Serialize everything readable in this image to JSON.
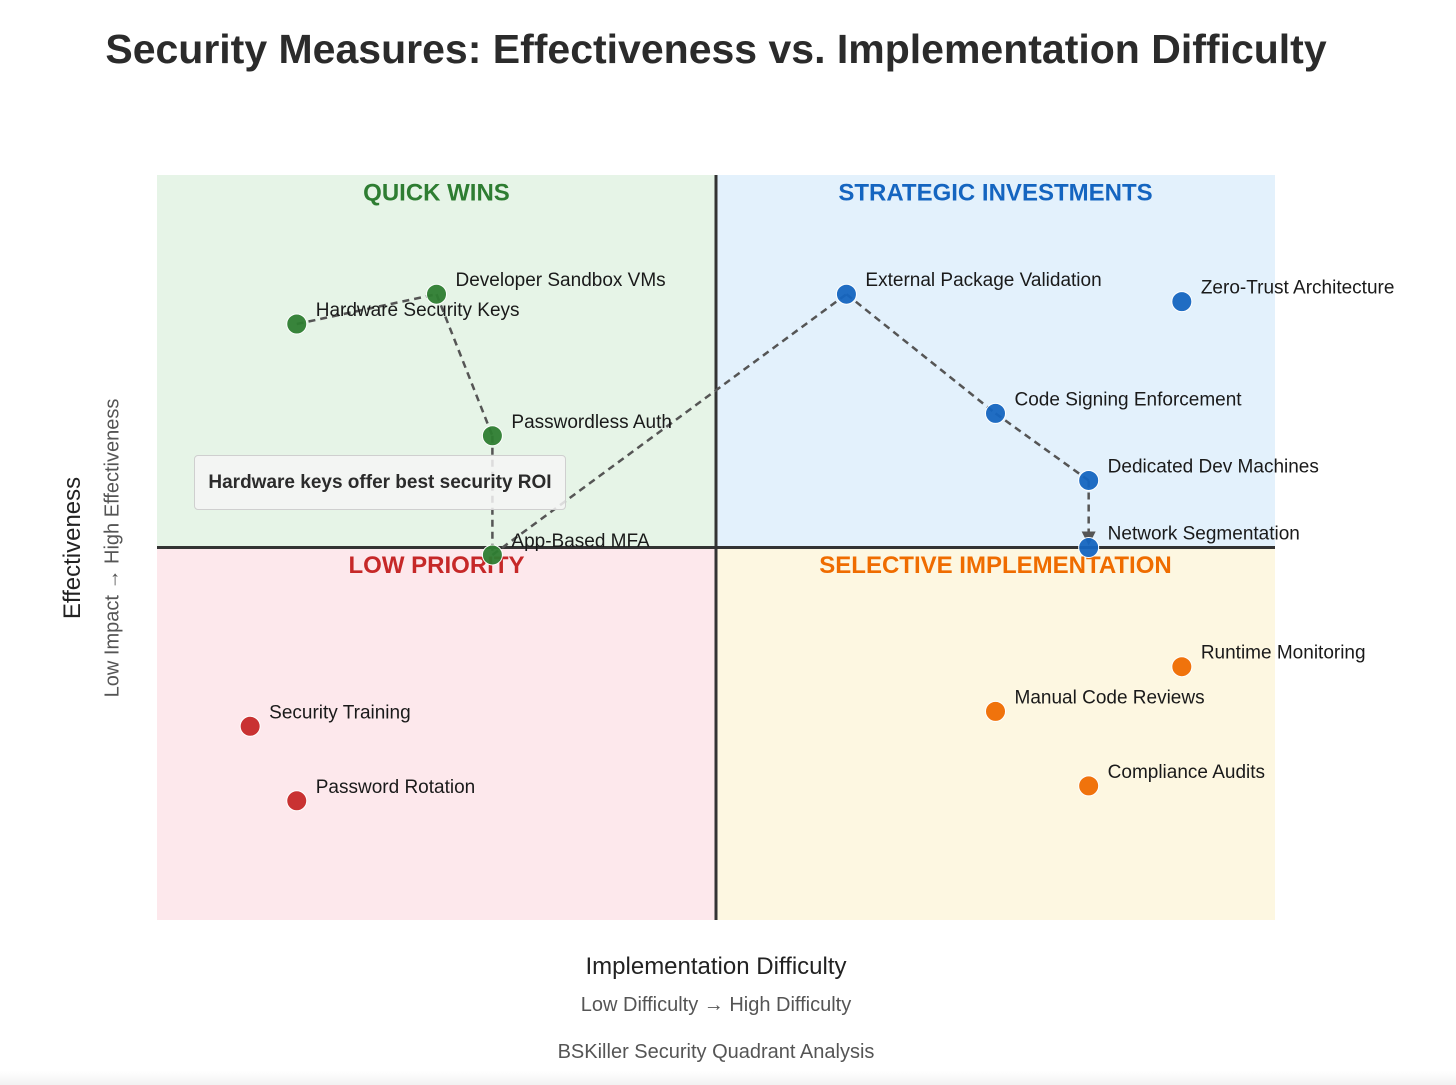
{
  "title": "Security Measures: Effectiveness vs. Implementation Difficulty",
  "footer": "BSKiller Security Quadrant Analysis",
  "chart_data": {
    "type": "scatter",
    "title": "Security Measures: Effectiveness vs. Implementation Difficulty",
    "xlabel": "Implementation Difficulty",
    "xlabel_sub": "Low Difficulty → High Difficulty",
    "ylabel": "Effectiveness",
    "ylabel_sub": "Low Impact → High Effectiveness",
    "xlim": [
      0,
      12
    ],
    "ylim": [
      0,
      10
    ],
    "xdivider": 6,
    "ydivider": 5,
    "grid": false,
    "quadrants": [
      {
        "name": "QUICK WINS",
        "position": "top-left",
        "fill": "#e6f4e7",
        "color": "#2e7d32"
      },
      {
        "name": "STRATEGIC INVESTMENTS",
        "position": "top-right",
        "fill": "#e3f1fc",
        "color": "#1565c0"
      },
      {
        "name": "LOW PRIORITY",
        "position": "bottom-left",
        "fill": "#fde8ec",
        "color": "#c62828"
      },
      {
        "name": "SELECTIVE IMPLEMENTATION",
        "position": "bottom-right",
        "fill": "#fdf7e1",
        "color": "#ef6c00"
      }
    ],
    "points": [
      {
        "label": "Hardware Security Keys",
        "x": 1.5,
        "y": 8.0,
        "color": "#2e7d32"
      },
      {
        "label": "Developer Sandbox VMs",
        "x": 3.0,
        "y": 8.4,
        "color": "#2e7d32"
      },
      {
        "label": "Passwordless Auth",
        "x": 3.6,
        "y": 6.5,
        "color": "#2e7d32"
      },
      {
        "label": "App-Based MFA",
        "x": 3.6,
        "y": 4.9,
        "color": "#2e7d32"
      },
      {
        "label": "External Package Validation",
        "x": 7.4,
        "y": 8.4,
        "color": "#1565c0"
      },
      {
        "label": "Zero-Trust Architecture",
        "x": 11.0,
        "y": 8.3,
        "color": "#1565c0"
      },
      {
        "label": "Code Signing Enforcement",
        "x": 9.0,
        "y": 6.8,
        "color": "#1565c0"
      },
      {
        "label": "Dedicated Dev Machines",
        "x": 10.0,
        "y": 5.9,
        "color": "#1565c0"
      },
      {
        "label": "Network Segmentation",
        "x": 10.0,
        "y": 5.0,
        "color": "#1565c0"
      },
      {
        "label": "Runtime Monitoring",
        "x": 11.0,
        "y": 3.4,
        "color": "#ef6c00"
      },
      {
        "label": "Manual Code Reviews",
        "x": 9.0,
        "y": 2.8,
        "color": "#ef6c00"
      },
      {
        "label": "Compliance Audits",
        "x": 10.0,
        "y": 1.8,
        "color": "#ef6c00"
      },
      {
        "label": "Security Training",
        "x": 1.0,
        "y": 2.6,
        "color": "#c62828"
      },
      {
        "label": "Password Rotation",
        "x": 1.5,
        "y": 1.6,
        "color": "#c62828"
      }
    ],
    "path": [
      "Hardware Security Keys",
      "Developer Sandbox VMs",
      "Passwordless Auth",
      "App-Based MFA",
      "External Package Validation",
      "Code Signing Enforcement",
      "Dedicated Dev Machines",
      "Network Segmentation"
    ],
    "annotation": "Hardware keys offer best security ROI"
  }
}
